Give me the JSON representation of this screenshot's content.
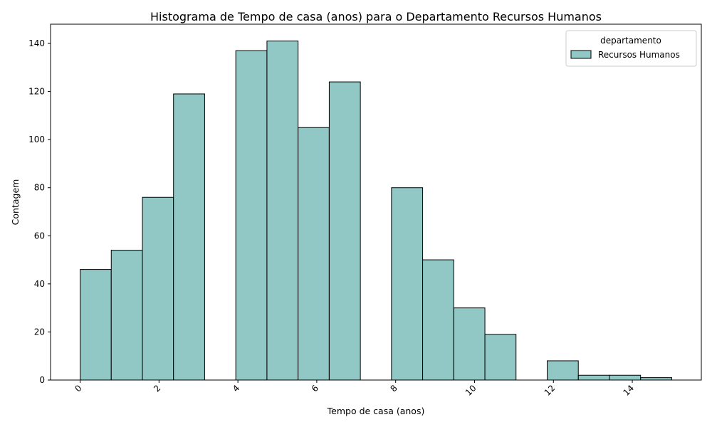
{
  "chart_data": {
    "type": "bar",
    "title": "Histograma de Tempo de casa (anos) para o Departamento Recursos Humanos",
    "xlabel": "Tempo de casa (anos)",
    "ylabel": "Contagem",
    "xlim": [
      -0.75,
      15.75
    ],
    "ylim": [
      0,
      148
    ],
    "xticks": [
      0,
      2,
      4,
      6,
      8,
      10,
      12,
      14
    ],
    "yticks": [
      0,
      20,
      40,
      60,
      80,
      100,
      120,
      140
    ],
    "bin_width": 0.789,
    "bins": [
      {
        "start": 0.0,
        "count": 46
      },
      {
        "start": 0.789,
        "count": 54
      },
      {
        "start": 1.579,
        "count": 76
      },
      {
        "start": 2.368,
        "count": 119
      },
      {
        "start": 3.158,
        "count": 0
      },
      {
        "start": 3.947,
        "count": 137
      },
      {
        "start": 4.737,
        "count": 141
      },
      {
        "start": 5.526,
        "count": 105
      },
      {
        "start": 6.316,
        "count": 124
      },
      {
        "start": 7.105,
        "count": 0
      },
      {
        "start": 7.895,
        "count": 80
      },
      {
        "start": 8.684,
        "count": 50
      },
      {
        "start": 9.474,
        "count": 30
      },
      {
        "start": 10.263,
        "count": 19
      },
      {
        "start": 11.053,
        "count": 0
      },
      {
        "start": 11.842,
        "count": 8
      },
      {
        "start": 12.632,
        "count": 2
      },
      {
        "start": 13.421,
        "count": 2
      },
      {
        "start": 14.211,
        "count": 1
      }
    ],
    "bar_color": "#91c7c4",
    "edge_color": "#000000",
    "legend": {
      "title": "departamento",
      "entries": [
        {
          "name": "Recursos Humanos",
          "color": "#91c7c4"
        }
      ],
      "placement": "top-right"
    },
    "grid": false
  }
}
